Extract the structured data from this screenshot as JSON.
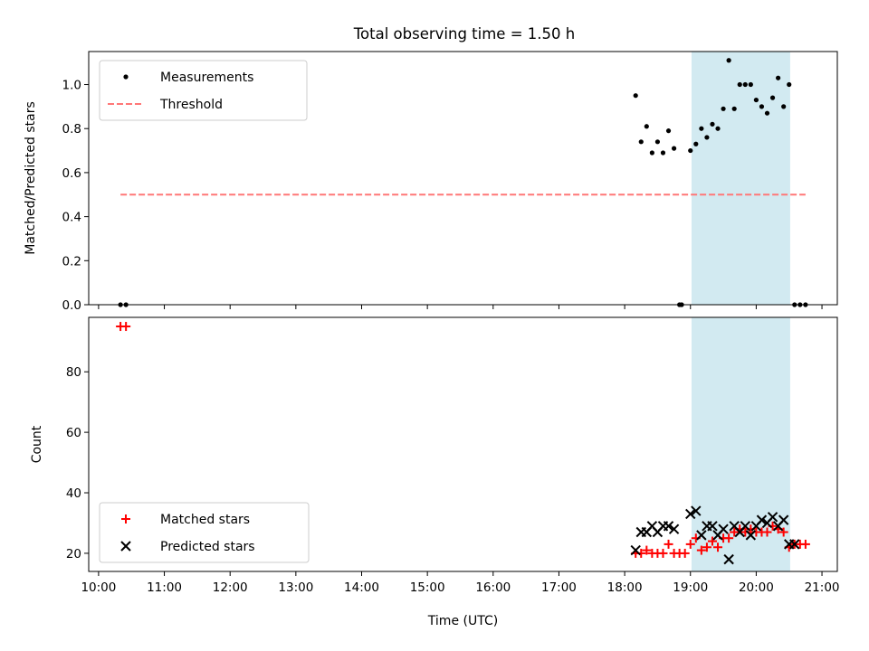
{
  "title": "Total observing time = 1.50 h",
  "chart_data": [
    {
      "type": "scatter",
      "ylabel": "Matched/Predicted stars",
      "xlabel": "",
      "xlim": [
        "10:00",
        "21:00"
      ],
      "ylim": [
        0,
        1.15
      ],
      "yticks": [
        "0.0",
        "0.2",
        "0.4",
        "0.6",
        "0.8",
        "1.0"
      ],
      "legend": {
        "placement": "upper-left",
        "entries": [
          {
            "label": "Measurements",
            "marker": "dot",
            "color": "#000000"
          },
          {
            "label": "Threshold",
            "marker": "dashed-line",
            "color": "#ff7777"
          }
        ]
      },
      "shaded_interval": [
        "19:01",
        "20:31"
      ],
      "shade_color": "#add8e6",
      "threshold": {
        "value": 0.5,
        "from": "10:20",
        "to": "20:45"
      },
      "series": [
        {
          "name": "Measurements",
          "x": [
            "10:20",
            "10:25",
            "18:10",
            "18:15",
            "18:20",
            "18:25",
            "18:30",
            "18:35",
            "18:40",
            "18:45",
            "18:50",
            "18:52",
            "19:00",
            "19:05",
            "19:10",
            "19:15",
            "19:20",
            "19:25",
            "19:30",
            "19:35",
            "19:40",
            "19:45",
            "19:50",
            "19:55",
            "20:00",
            "20:05",
            "20:10",
            "20:15",
            "20:20",
            "20:25",
            "20:30",
            "20:35",
            "20:40",
            "20:45"
          ],
          "y": [
            0,
            0,
            0.95,
            0.74,
            0.81,
            0.69,
            0.74,
            0.69,
            0.79,
            0.71,
            0,
            0,
            0.7,
            0.73,
            0.8,
            0.76,
            0.82,
            0.8,
            0.89,
            1.11,
            0.89,
            1.0,
            1.0,
            1.0,
            0.93,
            0.9,
            0.87,
            0.94,
            1.03,
            0.9,
            1.0,
            0,
            0,
            0
          ]
        }
      ]
    },
    {
      "type": "scatter",
      "ylabel": "Count",
      "xlabel": "Time (UTC)",
      "xlim": [
        "10:00",
        "21:00"
      ],
      "xticks": [
        "10:00",
        "11:00",
        "12:00",
        "13:00",
        "14:00",
        "15:00",
        "16:00",
        "17:00",
        "18:00",
        "19:00",
        "20:00",
        "21:00"
      ],
      "ylim": [
        14,
        98
      ],
      "yticks": [
        "20",
        "40",
        "60",
        "80"
      ],
      "legend": {
        "placement": "lower-left",
        "entries": [
          {
            "label": "Matched stars",
            "marker": "plus",
            "color": "#ff0000"
          },
          {
            "label": "Predicted stars",
            "marker": "x",
            "color": "#000000"
          }
        ]
      },
      "shaded_interval": [
        "19:01",
        "20:31"
      ],
      "shade_color": "#add8e6",
      "series": [
        {
          "name": "Matched stars",
          "x": [
            "10:20",
            "10:25",
            "18:10",
            "18:15",
            "18:20",
            "18:25",
            "18:30",
            "18:35",
            "18:40",
            "18:45",
            "18:50",
            "18:55",
            "19:00",
            "19:05",
            "19:10",
            "19:15",
            "19:20",
            "19:25",
            "19:30",
            "19:35",
            "19:40",
            "19:45",
            "19:50",
            "19:55",
            "20:00",
            "20:05",
            "20:10",
            "20:15",
            "20:20",
            "20:25",
            "20:30",
            "20:35",
            "20:40",
            "20:45"
          ],
          "y": [
            95,
            95,
            20,
            20,
            21,
            20,
            20,
            20,
            23,
            20,
            20,
            20,
            23,
            25,
            21,
            22,
            24,
            22,
            25,
            25,
            27,
            28,
            27,
            28,
            27,
            27,
            27,
            29,
            28,
            27,
            22,
            23,
            23,
            23
          ]
        },
        {
          "name": "Predicted stars",
          "x": [
            "18:10",
            "18:15",
            "18:20",
            "18:25",
            "18:30",
            "18:35",
            "18:40",
            "18:45",
            "19:00",
            "19:05",
            "19:10",
            "19:15",
            "19:20",
            "19:25",
            "19:30",
            "19:35",
            "19:40",
            "19:45",
            "19:50",
            "19:55",
            "20:00",
            "20:05",
            "20:10",
            "20:15",
            "20:20",
            "20:25",
            "20:30",
            "20:35"
          ],
          "y": [
            21,
            27,
            27,
            29,
            27,
            29,
            29,
            28,
            33,
            34,
            26,
            29,
            29,
            26,
            28,
            18,
            29,
            27,
            29,
            26,
            29,
            31,
            30,
            32,
            29,
            31,
            23,
            23
          ]
        }
      ]
    }
  ]
}
